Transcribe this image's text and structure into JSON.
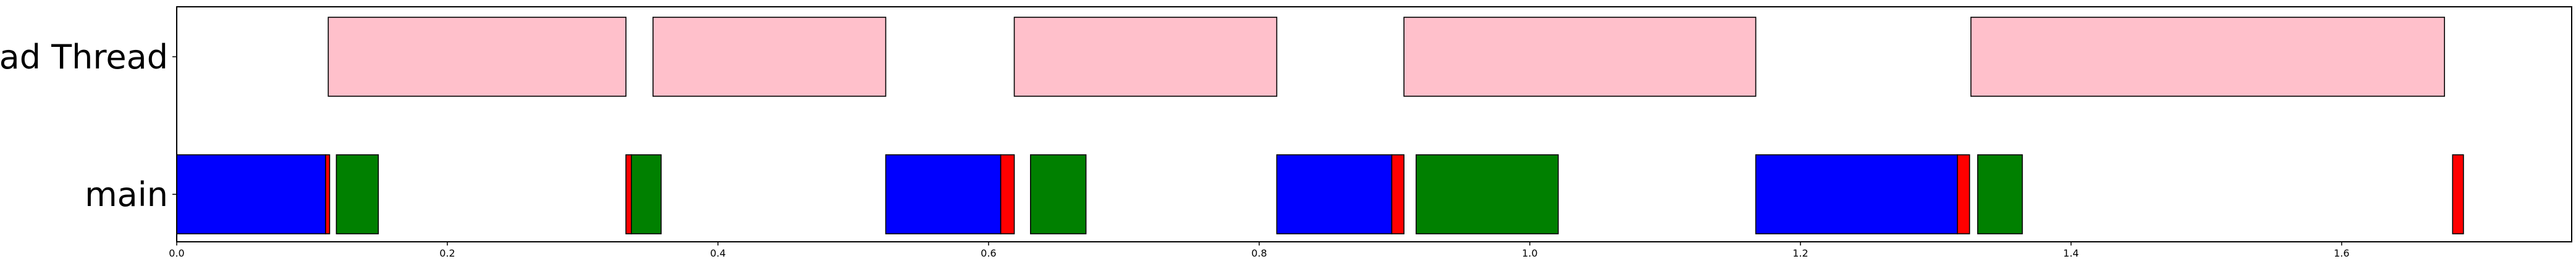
{
  "chart_data": {
    "type": "gantt",
    "xlim": [
      0,
      1.77
    ],
    "x_ticks": [
      0.0,
      0.2,
      0.4,
      0.6,
      0.8,
      1.0,
      1.2,
      1.4,
      1.6
    ],
    "x_tick_labels": [
      "0.0",
      "0.2",
      "0.4",
      "0.6",
      "0.8",
      "1.0",
      "1.2",
      "1.4",
      "1.6"
    ],
    "grid": false,
    "rows": [
      {
        "label": "load Thread",
        "segments": [
          {
            "start": 0.112,
            "end": 0.332,
            "color": "#ffc0cb"
          },
          {
            "start": 0.352,
            "end": 0.524,
            "color": "#ffc0cb"
          },
          {
            "start": 0.619,
            "end": 0.813,
            "color": "#ffc0cb"
          },
          {
            "start": 0.907,
            "end": 1.167,
            "color": "#ffc0cb"
          },
          {
            "start": 1.326,
            "end": 1.676,
            "color": "#ffc0cb"
          }
        ]
      },
      {
        "label": "main",
        "segments": [
          {
            "start": 0.0,
            "end": 0.11,
            "color": "#0000ff"
          },
          {
            "start": 0.11,
            "end": 0.113,
            "color": "#ff0000"
          },
          {
            "start": 0.118,
            "end": 0.149,
            "color": "#008000"
          },
          {
            "start": 0.332,
            "end": 0.336,
            "color": "#ff0000"
          },
          {
            "start": 0.336,
            "end": 0.358,
            "color": "#008000"
          },
          {
            "start": 0.524,
            "end": 0.609,
            "color": "#0000ff"
          },
          {
            "start": 0.609,
            "end": 0.619,
            "color": "#ff0000"
          },
          {
            "start": 0.631,
            "end": 0.672,
            "color": "#008000"
          },
          {
            "start": 0.813,
            "end": 0.898,
            "color": "#0000ff"
          },
          {
            "start": 0.898,
            "end": 0.907,
            "color": "#ff0000"
          },
          {
            "start": 0.916,
            "end": 1.021,
            "color": "#008000"
          },
          {
            "start": 1.167,
            "end": 1.316,
            "color": "#0000ff"
          },
          {
            "start": 1.316,
            "end": 1.325,
            "color": "#ff0000"
          },
          {
            "start": 1.331,
            "end": 1.364,
            "color": "#008000"
          },
          {
            "start": 1.682,
            "end": 1.69,
            "color": "#ff0000"
          }
        ]
      }
    ]
  }
}
